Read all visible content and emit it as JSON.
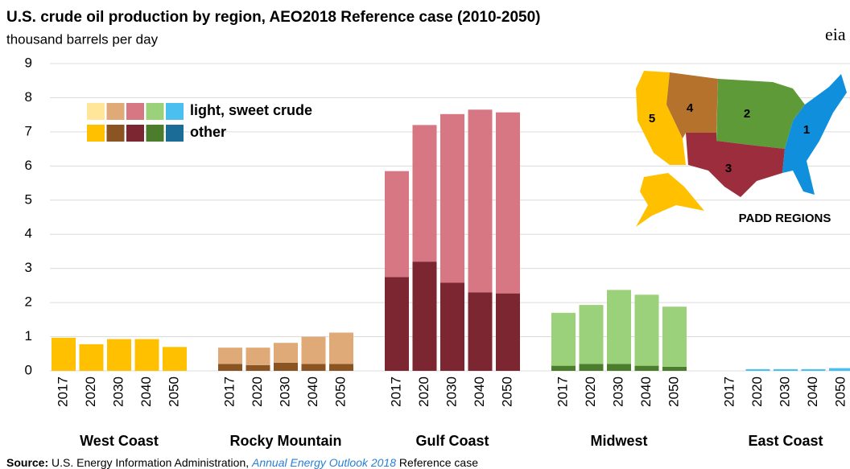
{
  "chart_data": {
    "type": "grouped-stacked-bar",
    "title": "U.S. crude oil production by region, AEO2018 Reference case (2010-2050)",
    "subtitle": "thousand barrels per day",
    "logo": "eia",
    "categories": [
      "West Coast",
      "Rocky Mountain",
      "Gulf Coast",
      "Midwest",
      "East Coast"
    ],
    "years": [
      "2017",
      "2020",
      "2030",
      "2040",
      "2050"
    ],
    "series": [
      {
        "name": "other",
        "colors": [
          "#ffc000",
          "#8b5523",
          "#7b2631",
          "#4c7d2c",
          "#1b6c96"
        ],
        "values": [
          [
            0.97,
            0.78,
            0.93,
            0.93,
            0.7
          ],
          [
            0.2,
            0.17,
            0.24,
            0.2,
            0.2
          ],
          [
            2.75,
            3.2,
            2.58,
            2.3,
            2.27
          ],
          [
            0.15,
            0.2,
            0.2,
            0.15,
            0.12
          ],
          [
            0,
            0,
            0,
            0,
            0
          ]
        ]
      },
      {
        "name": "light, sweet crude",
        "colors": [
          "#ffe699",
          "#e0aa78",
          "#d87784",
          "#9bd17a",
          "#4bc0f0"
        ],
        "values": [
          [
            0,
            0,
            0,
            0,
            0
          ],
          [
            0.48,
            0.51,
            0.58,
            0.8,
            0.92
          ],
          [
            3.1,
            4.0,
            4.94,
            5.35,
            5.3
          ],
          [
            1.55,
            1.73,
            2.17,
            2.08,
            1.76
          ],
          [
            0,
            0.05,
            0.05,
            0.05,
            0.08
          ]
        ]
      }
    ],
    "ylim": [
      0,
      9
    ],
    "yticks": [
      0,
      1,
      2,
      3,
      4,
      5,
      6,
      7,
      8,
      9
    ],
    "grid": true,
    "map": {
      "title": "PADD REGIONS",
      "labels": [
        "5",
        "4",
        "2",
        "1",
        "3"
      ]
    },
    "source": {
      "label": "Source:",
      "text": "U.S. Energy Information Administration,",
      "link": "Annual Energy Outlook 2018",
      "tail": "Reference case"
    }
  }
}
